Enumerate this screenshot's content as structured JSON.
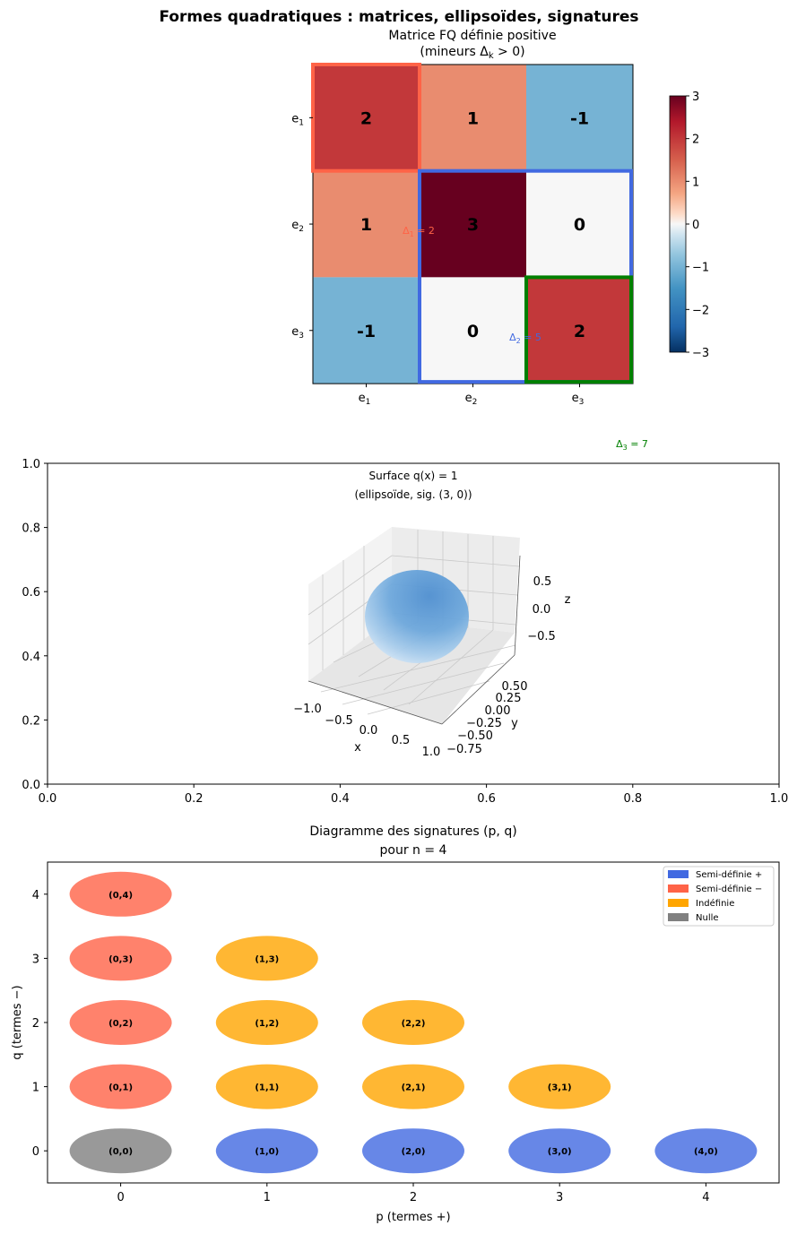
{
  "suptitle": "Formes quadratiques : matrices, ellipsoïdes, signatures",
  "chart_data": [
    {
      "type": "heatmap",
      "title_line1": "Matrice FQ définie positive",
      "title_line2": "(mineurs Δ",
      "title_sub": "k",
      "title_tail": " > 0)",
      "row_labels": [
        "e1",
        "e2",
        "e3"
      ],
      "col_labels": [
        "e1",
        "e2",
        "e3"
      ],
      "label_base": "e",
      "label_subs": [
        "1",
        "2",
        "3"
      ],
      "matrix": [
        [
          2,
          1,
          -1
        ],
        [
          1,
          3,
          0
        ],
        [
          -1,
          0,
          2
        ]
      ],
      "cell_labels": [
        [
          "2",
          "1",
          "-1"
        ],
        [
          "1",
          "3",
          "0"
        ],
        [
          "-1",
          "0",
          "2"
        ]
      ],
      "colorscale": "RdBu_r",
      "vmin": -3,
      "vmax": 3,
      "colorbar_ticks": [
        "3",
        "2",
        "1",
        "0",
        "−1",
        "−2",
        "−3"
      ],
      "minors": [
        {
          "name": "Δ",
          "sub": "1",
          "value": "= 2",
          "color": "#ff6347"
        },
        {
          "name": "Δ",
          "sub": "2",
          "value": "= 5",
          "color": "#4169e1"
        },
        {
          "name": "Δ",
          "sub": "3",
          "value": "= 7",
          "color": "#008000"
        }
      ]
    },
    {
      "type": "surface3d",
      "title_line1": "Surface q(x) = 1",
      "title_line2": "(ellipsoïde, sig. (3, 0))",
      "outer_axes": {
        "xlim": [
          0,
          1
        ],
        "ylim": [
          0,
          1
        ],
        "xticks": [
          "0.0",
          "0.2",
          "0.4",
          "0.6",
          "0.8",
          "1.0"
        ],
        "yticks": [
          "0.0",
          "0.2",
          "0.4",
          "0.6",
          "0.8",
          "1.0"
        ]
      },
      "x_ticks": [
        "−1.0",
        "−0.5",
        "0.0",
        "0.5",
        "1.0"
      ],
      "y_ticks": [
        "0.50",
        "0.25",
        "0.00",
        "−0.25",
        "−0.50",
        "−0.75"
      ],
      "z_ticks": [
        "0.5",
        "0.0",
        "−0.5"
      ],
      "xlabel": "x",
      "ylabel": "y",
      "zlabel": "z",
      "color": "#5b9bd5"
    },
    {
      "type": "scatter",
      "title_line1": "Diagramme des signatures (p, q)",
      "title_line2": "pour n = 4",
      "xlabel": "p (termes +)",
      "ylabel": "q (termes −)",
      "xlim": [
        -0.5,
        4.5
      ],
      "ylim": [
        -0.5,
        4.5
      ],
      "xticks": [
        "0",
        "1",
        "2",
        "3",
        "4"
      ],
      "yticks": [
        "0",
        "1",
        "2",
        "3",
        "4"
      ],
      "legend_position": "upper right",
      "legend": [
        {
          "label": "Semi-définie +",
          "color": "#4169e1"
        },
        {
          "label": "Semi-définie −",
          "color": "#ff6347"
        },
        {
          "label": "Indéfinie",
          "color": "#ffa500"
        },
        {
          "label": "Nulle",
          "color": "#808080"
        }
      ],
      "points": [
        {
          "p": 0,
          "q": 4,
          "label": "(0,4)",
          "color": "#ff6347"
        },
        {
          "p": 0,
          "q": 3,
          "label": "(0,3)",
          "color": "#ff6347"
        },
        {
          "p": 1,
          "q": 3,
          "label": "(1,3)",
          "color": "#ffa500"
        },
        {
          "p": 0,
          "q": 2,
          "label": "(0,2)",
          "color": "#ff6347"
        },
        {
          "p": 1,
          "q": 2,
          "label": "(1,2)",
          "color": "#ffa500"
        },
        {
          "p": 2,
          "q": 2,
          "label": "(2,2)",
          "color": "#ffa500"
        },
        {
          "p": 0,
          "q": 1,
          "label": "(0,1)",
          "color": "#ff6347"
        },
        {
          "p": 1,
          "q": 1,
          "label": "(1,1)",
          "color": "#ffa500"
        },
        {
          "p": 2,
          "q": 1,
          "label": "(2,1)",
          "color": "#ffa500"
        },
        {
          "p": 3,
          "q": 1,
          "label": "(3,1)",
          "color": "#ffa500"
        },
        {
          "p": 0,
          "q": 0,
          "label": "(0,0)",
          "color": "#808080"
        },
        {
          "p": 1,
          "q": 0,
          "label": "(1,0)",
          "color": "#4169e1"
        },
        {
          "p": 2,
          "q": 0,
          "label": "(2,0)",
          "color": "#4169e1"
        },
        {
          "p": 3,
          "q": 0,
          "label": "(3,0)",
          "color": "#4169e1"
        },
        {
          "p": 4,
          "q": 0,
          "label": "(4,0)",
          "color": "#4169e1"
        }
      ]
    }
  ]
}
